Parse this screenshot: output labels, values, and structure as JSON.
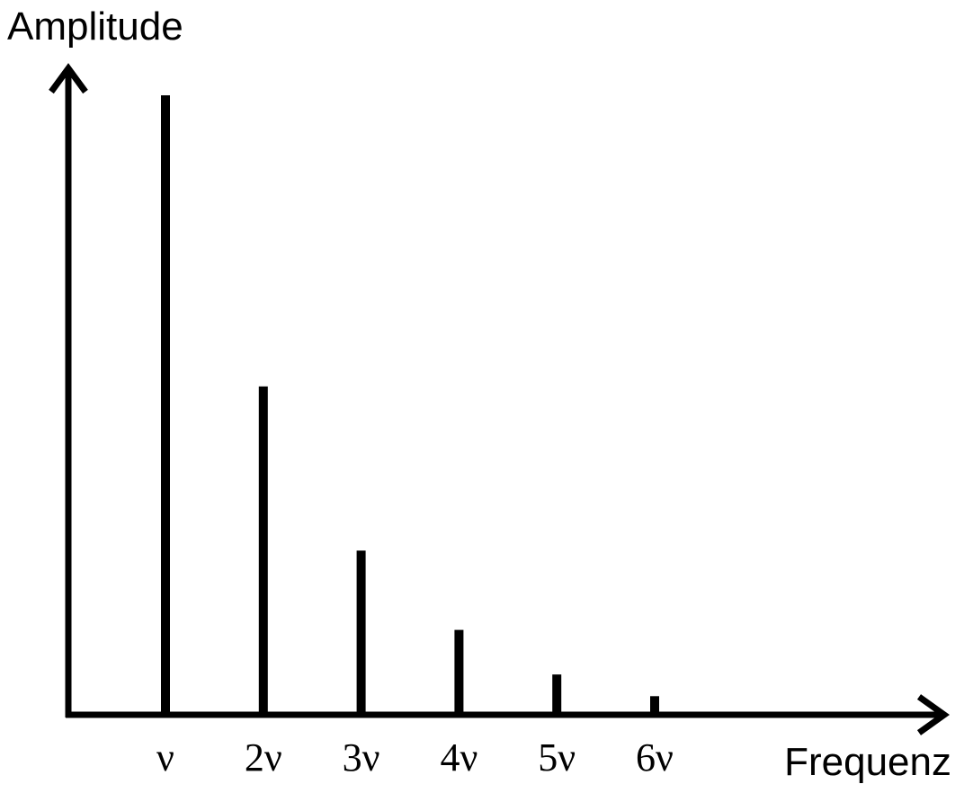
{
  "chart_data": {
    "type": "bar",
    "title": "",
    "xlabel": "Frequenz",
    "ylabel": "Amplitude",
    "categories": [
      "ν",
      "2ν",
      "3ν",
      "4ν",
      "5ν",
      "6ν"
    ],
    "values": [
      1.0,
      0.53,
      0.265,
      0.137,
      0.065,
      0.03
    ],
    "ylim": [
      0,
      1
    ],
    "grid": false,
    "legend": "none",
    "colors": {
      "bars": "#000000",
      "axes": "#000000",
      "background": "#ffffff"
    }
  }
}
